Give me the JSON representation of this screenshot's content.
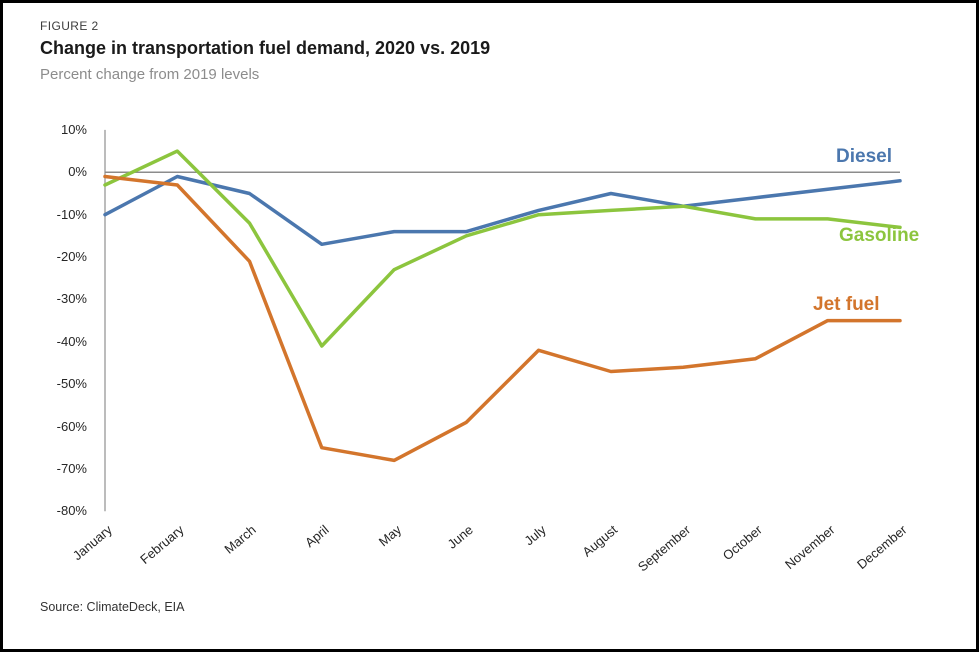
{
  "figure_label": "FIGURE 2",
  "title": "Change in transportation fuel demand, 2020 vs. 2019",
  "subtitle": "Percent change from 2019 levels",
  "source": "Source: ClimateDeck, EIA",
  "colors": {
    "diesel": "#4B77AE",
    "gasoline": "#8CC53E",
    "jet_fuel": "#D3752C",
    "zero_line": "#8c8c8c",
    "axis_line": "#a6a6a6"
  },
  "chart_data": {
    "type": "line",
    "title": "Change in transportation fuel demand, 2020 vs. 2019",
    "xlabel": "",
    "ylabel": "Percent change from 2019 levels",
    "categories": [
      "January",
      "February",
      "March",
      "April",
      "May",
      "June",
      "July",
      "August",
      "September",
      "October",
      "November",
      "December"
    ],
    "series": [
      {
        "name": "Diesel",
        "color": "#4B77AE",
        "values": [
          -10,
          -1,
          -5,
          -17,
          -14,
          -14,
          -9,
          -5,
          -8,
          -6,
          -4,
          -2
        ]
      },
      {
        "name": "Gasoline",
        "color": "#8CC53E",
        "values": [
          -3,
          5,
          -12,
          -41,
          -23,
          -15,
          -10,
          -9,
          -8,
          -11,
          -11,
          -13
        ]
      },
      {
        "name": "Jet fuel",
        "color": "#D3752C",
        "values": [
          -1,
          -3,
          -21,
          -65,
          -68,
          -59,
          -42,
          -47,
          -46,
          -44,
          -35,
          -35
        ]
      }
    ],
    "y_ticks": [
      "10%",
      "0%",
      "-10%",
      "-20%",
      "-30%",
      "-40%",
      "-50%",
      "-60%",
      "-70%",
      "-80%"
    ],
    "ylim": [
      -80,
      10
    ],
    "grid": "zero-line-only",
    "legend": "inline-labels-at-line-end"
  }
}
